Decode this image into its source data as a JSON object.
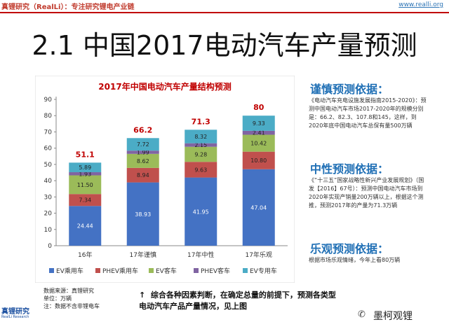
{
  "header": {
    "brand": "真锂研究（RealLi）：专注研究锂电产业链",
    "url": "www.realli.org"
  },
  "slide_title": "2.1 中国2017电动汽车产量预测",
  "chart_data": {
    "type": "bar",
    "stacked": true,
    "title": "2017年中国电动汽车产量结构预测",
    "categories": [
      "16年",
      "17年谨慎",
      "17年中性",
      "17年乐观"
    ],
    "series": [
      {
        "name": "EV乘用车",
        "color": "#4472c4",
        "values": [
          24.44,
          38.93,
          41.95,
          47.04
        ]
      },
      {
        "name": "PHEV乘用车",
        "color": "#c0504d",
        "values": [
          7.34,
          8.94,
          9.63,
          10.8
        ]
      },
      {
        "name": "EV客车",
        "color": "#9bbb59",
        "values": [
          11.5,
          8.62,
          9.28,
          10.42
        ]
      },
      {
        "name": "PHEV客车",
        "color": "#8064a2",
        "values": [
          1.93,
          1.99,
          2.15,
          2.41
        ]
      },
      {
        "name": "EV专用车",
        "color": "#4bacc6",
        "values": [
          5.89,
          7.72,
          8.32,
          9.33
        ]
      }
    ],
    "totals": [
      "51.1",
      "66.2",
      "71.3",
      "80"
    ],
    "ylim": [
      0,
      90
    ],
    "yticks": [
      0,
      10,
      20,
      30,
      40,
      50,
      60,
      70,
      80,
      90
    ],
    "legend_position": "bottom",
    "grid": false
  },
  "sidebar": {
    "cautious_head": "谨慎预测依据：",
    "cautious_text": "《电动汽车充电设施发展指南2015-2020》：预测中国电动汽车市场2017-2020年的规模分别是：66.2、82.3、107.8和145，这样，到2020年底中国电动汽车总保有量500万辆",
    "neutral_head": "中性预测依据：",
    "neutral_text": "《“十三五”国家战略性新兴产业发展规划》（国发【2016】67号）：预测中国电动汽车市场到2020年实现产销量200万辆以上，根据这个测推，预测2017年的产量为71.3万辆",
    "optimistic_head": "乐观预测依据：",
    "optimistic_text": "根据市场乐观情绪，今年上看80万辆"
  },
  "source": {
    "line1": "数据来源：真锂研究",
    "line2": "单位：万辆",
    "line3": "注：数据不含非锂电车"
  },
  "note": {
    "arrow": "↑",
    "line1": "综合各种因素判断，在确定总量的前提下，预测各类型",
    "line2": "电动汽车产品产量情况，见上图"
  },
  "footer": {
    "logo": "真锂研究",
    "logo_sub": "RealLi Research",
    "watermark": "墨柯观锂"
  }
}
